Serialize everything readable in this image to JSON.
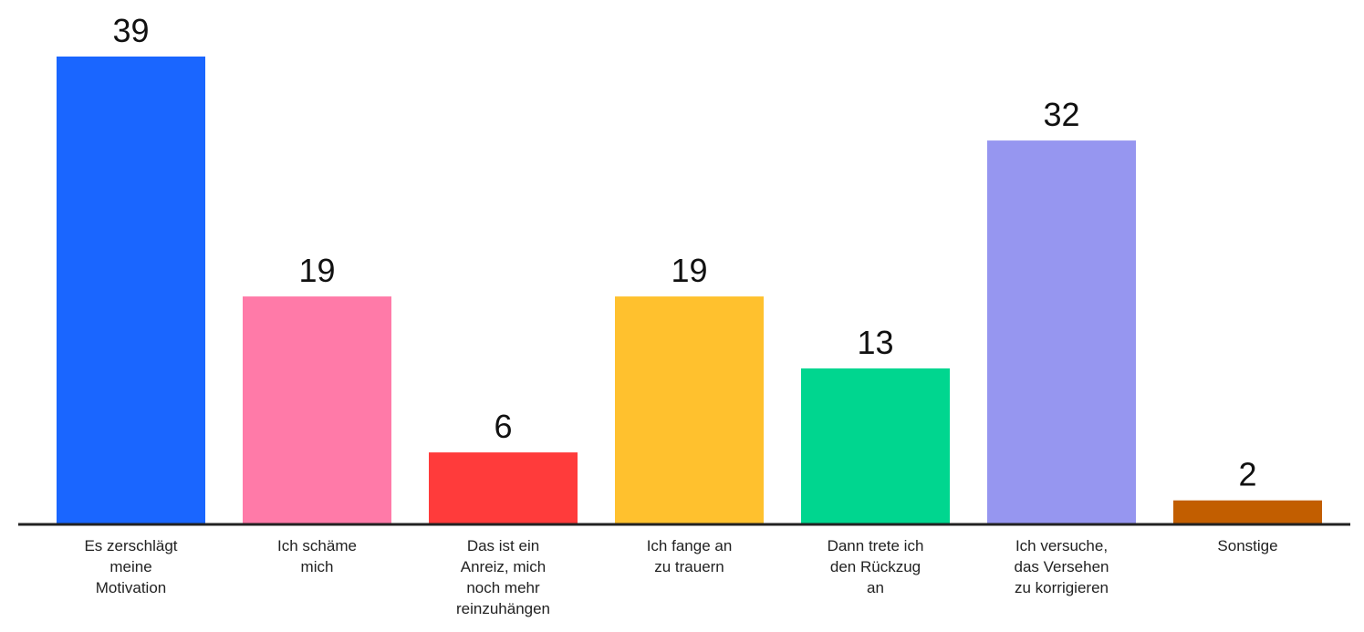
{
  "chart_data": {
    "type": "bar",
    "title": "",
    "xlabel": "",
    "ylabel": "",
    "ylim": [
      0,
      39
    ],
    "grid": false,
    "legend": "none",
    "categories": [
      [
        "Es zerschlägt",
        "meine",
        "Motivation"
      ],
      [
        "Ich schäme",
        "mich"
      ],
      [
        "Das ist ein",
        "Anreiz, mich",
        "noch mehr",
        "reinzuhängen"
      ],
      [
        "Ich fange an",
        "zu trauern"
      ],
      [
        "Dann trete ich",
        "den Rückzug",
        "an"
      ],
      [
        "Ich versuche,",
        "das Versehen",
        "zu korrigieren"
      ],
      [
        "Sonstige"
      ]
    ],
    "values": [
      39,
      19,
      6,
      19,
      13,
      32,
      2
    ],
    "data_labels": [
      "39",
      "19",
      "6",
      "19",
      "13",
      "32",
      "2"
    ],
    "colors": [
      "#1a66ff",
      "#ff7aa8",
      "#ff3b3b",
      "#ffc12e",
      "#00d68f",
      "#9696f0",
      "#c25e00"
    ],
    "baseline_color": "#222222"
  }
}
